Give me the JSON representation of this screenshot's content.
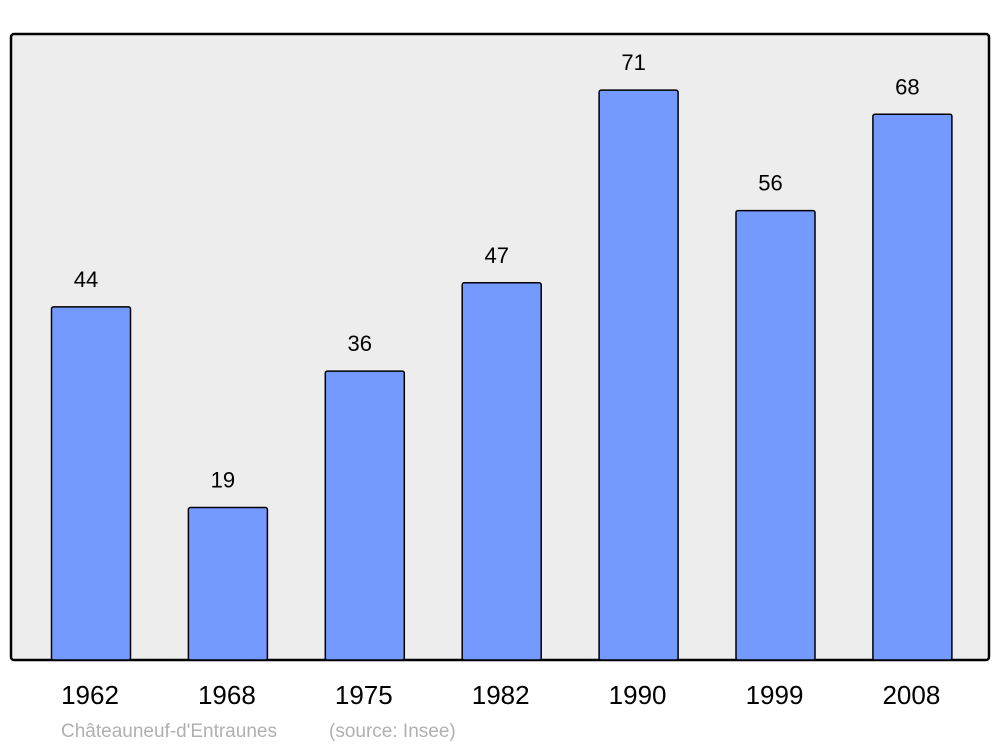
{
  "chart_data": {
    "type": "bar",
    "categories": [
      "1962",
      "1968",
      "1975",
      "1982",
      "1990",
      "1999",
      "2008"
    ],
    "values": [
      44,
      19,
      36,
      47,
      71,
      56,
      68
    ],
    "data_labels": [
      "44",
      "19",
      "36",
      "47",
      "71",
      "56",
      "68"
    ],
    "title": "",
    "xlabel": "",
    "ylabel": "",
    "ylim": [
      0,
      78
    ],
    "grid": false,
    "colors": {
      "bar": "#7499ff",
      "background": "#ededed",
      "frame": "#000000"
    }
  },
  "caption": {
    "place": "Châteauneuf-d'Entraunes",
    "source": "(source: Insee)"
  }
}
